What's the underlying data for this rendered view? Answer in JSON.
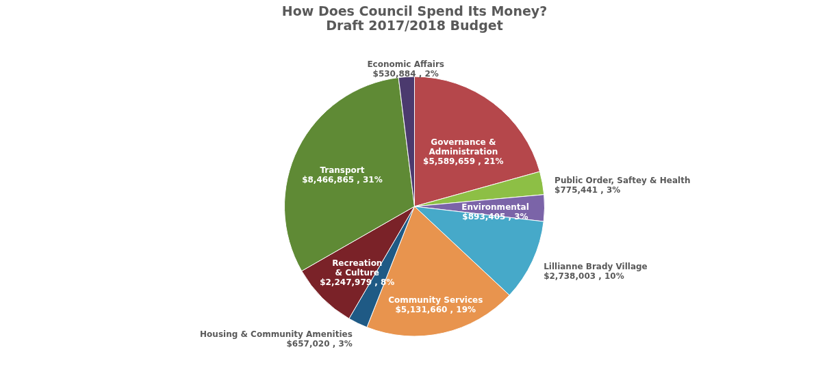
{
  "chart_data": {
    "type": "pie",
    "title": "How Does Council Spend Its Money?",
    "subtitle": "Draft 2017/2018 Budget",
    "categories": [
      "Governance & Administration",
      "Public Order, Saftey & Health",
      "Environmental",
      "Lillianne Brady Village",
      "Community Services",
      "Housing & Community Amenities",
      "Recreation & Culture",
      "Transport",
      "Economic Affairs"
    ],
    "values": [
      5589659,
      775441,
      893405,
      2738003,
      5131660,
      657020,
      2247979,
      8466865,
      530884
    ],
    "value_labels": [
      "$5,589,659 , 21%",
      "$775,441 , 3%",
      "$893,405 , 3%",
      "$2,738,003 , 10%",
      "$5,131,660 , 19%",
      "$657,020 , 3%",
      "$2,247,979 , 8%",
      "$8,466,865 , 31%",
      "$530,884 , 2%"
    ],
    "colors": [
      "#b5474b",
      "#8dbf45",
      "#7b64a8",
      "#46a9c9",
      "#e8944e",
      "#1f5a85",
      "#7a2228",
      "#5f8a35",
      "#4b3a6e"
    ],
    "legend": false
  }
}
